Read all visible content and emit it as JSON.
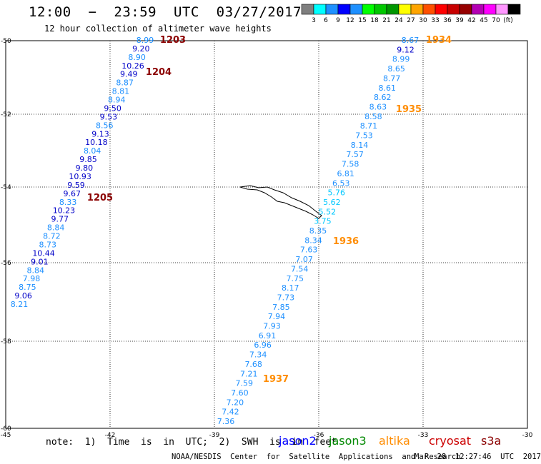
{
  "header": {
    "title": "12:00  −  23:59  UTC  03/27/2017",
    "subtitle": "12 hour collection of altimeter wave heights"
  },
  "colorbar": {
    "colors": [
      "#7f7f7f",
      "#00ffff",
      "#1e90ff",
      "#0000ff",
      "#1e90ff",
      "#00ff00",
      "#00c800",
      "#009600",
      "#ffff00",
      "#ffa500",
      "#ff5000",
      "#ff0000",
      "#c80000",
      "#960000",
      "#b400b4",
      "#ff00ff",
      "#ff96ff",
      "#000000"
    ],
    "labels": [
      "3",
      "6",
      "9",
      "12",
      "15",
      "18",
      "21",
      "24",
      "27",
      "30",
      "33",
      "36",
      "39",
      "42",
      "45",
      "70",
      "(ft)"
    ]
  },
  "axes": {
    "lat_labels": [
      "-50",
      "-52",
      "-54",
      "-56",
      "-58",
      "-60"
    ],
    "lon_labels": [
      "-45",
      "-42",
      "-39",
      "-36",
      "-33",
      "-30"
    ]
  },
  "tracks": {
    "left": [
      {
        "v": "8.99",
        "c": "#1e90ff"
      },
      {
        "v": "9.20",
        "c": "#0000c8"
      },
      {
        "v": "8.90",
        "c": "#1e90ff"
      },
      {
        "v": "10.26",
        "c": "#0000c8"
      },
      {
        "v": "9.49",
        "c": "#0000c8"
      },
      {
        "v": "8.87",
        "c": "#1e90ff"
      },
      {
        "v": "8.81",
        "c": "#1e90ff"
      },
      {
        "v": "8.94",
        "c": "#1e90ff"
      },
      {
        "v": "9.50",
        "c": "#0000c8"
      },
      {
        "v": "9.53",
        "c": "#0000c8"
      },
      {
        "v": "8.56",
        "c": "#1e90ff"
      },
      {
        "v": "9.13",
        "c": "#0000c8"
      },
      {
        "v": "10.18",
        "c": "#0000c8"
      },
      {
        "v": "8.04",
        "c": "#1e90ff"
      },
      {
        "v": "9.85",
        "c": "#0000c8"
      },
      {
        "v": "9.80",
        "c": "#0000c8"
      },
      {
        "v": "10.93",
        "c": "#0000c8"
      },
      {
        "v": "9.59",
        "c": "#0000c8"
      },
      {
        "v": "9.67",
        "c": "#0000c8"
      },
      {
        "v": "8.33",
        "c": "#1e90ff"
      },
      {
        "v": "10.23",
        "c": "#0000c8"
      },
      {
        "v": "9.77",
        "c": "#0000c8"
      },
      {
        "v": "8.84",
        "c": "#1e90ff"
      },
      {
        "v": "8.72",
        "c": "#1e90ff"
      },
      {
        "v": "8.73",
        "c": "#1e90ff"
      },
      {
        "v": "10.44",
        "c": "#0000c8"
      },
      {
        "v": "9.01",
        "c": "#0000c8"
      },
      {
        "v": "8.84",
        "c": "#1e90ff"
      },
      {
        "v": "7.98",
        "c": "#1e90ff"
      },
      {
        "v": "8.75",
        "c": "#1e90ff"
      },
      {
        "v": "9.06",
        "c": "#0000c8"
      },
      {
        "v": "8.21",
        "c": "#1e90ff"
      }
    ],
    "right": [
      {
        "v": "8.67",
        "c": "#1e90ff"
      },
      {
        "v": "9.12",
        "c": "#0000c8"
      },
      {
        "v": "8.99",
        "c": "#1e90ff"
      },
      {
        "v": "8.65",
        "c": "#1e90ff"
      },
      {
        "v": "8.77",
        "c": "#1e90ff"
      },
      {
        "v": "8.61",
        "c": "#1e90ff"
      },
      {
        "v": "8.62",
        "c": "#1e90ff"
      },
      {
        "v": "8.63",
        "c": "#1e90ff"
      },
      {
        "v": "8.58",
        "c": "#1e90ff"
      },
      {
        "v": "8.71",
        "c": "#1e90ff"
      },
      {
        "v": "7.53",
        "c": "#1e90ff"
      },
      {
        "v": "8.14",
        "c": "#1e90ff"
      },
      {
        "v": "7.57",
        "c": "#1e90ff"
      },
      {
        "v": "7.58",
        "c": "#1e90ff"
      },
      {
        "v": "6.81",
        "c": "#1e90ff"
      },
      {
        "v": "6.53",
        "c": "#1e90ff"
      },
      {
        "v": "5.76",
        "c": "#00c8ff"
      },
      {
        "v": "5.62",
        "c": "#00c8ff"
      },
      {
        "v": "5.52",
        "c": "#00c8ff"
      },
      {
        "v": "3.75",
        "c": "#00c8ff"
      },
      {
        "v": "8.35",
        "c": "#1e90ff"
      },
      {
        "v": "8.34",
        "c": "#1e90ff"
      },
      {
        "v": "7.63",
        "c": "#1e90ff"
      },
      {
        "v": "7.07",
        "c": "#1e90ff"
      },
      {
        "v": "7.54",
        "c": "#1e90ff"
      },
      {
        "v": "7.75",
        "c": "#1e90ff"
      },
      {
        "v": "8.17",
        "c": "#1e90ff"
      },
      {
        "v": "7.73",
        "c": "#1e90ff"
      },
      {
        "v": "7.85",
        "c": "#1e90ff"
      },
      {
        "v": "7.94",
        "c": "#1e90ff"
      },
      {
        "v": "7.93",
        "c": "#1e90ff"
      },
      {
        "v": "6.91",
        "c": "#1e90ff"
      },
      {
        "v": "6.96",
        "c": "#1e90ff"
      },
      {
        "v": "7.34",
        "c": "#1e90ff"
      },
      {
        "v": "7.68",
        "c": "#1e90ff"
      },
      {
        "v": "7.21",
        "c": "#1e90ff"
      },
      {
        "v": "7.59",
        "c": "#1e90ff"
      },
      {
        "v": "7.60",
        "c": "#1e90ff"
      },
      {
        "v": "7.20",
        "c": "#1e90ff"
      },
      {
        "v": "7.42",
        "c": "#1e90ff"
      },
      {
        "v": "7.36",
        "c": "#1e90ff"
      }
    ],
    "left_times": [
      "1203",
      "1204",
      "1205"
    ],
    "right_times": [
      "1934",
      "1935",
      "1936",
      "1937"
    ],
    "left_time_color": "#8b0000",
    "right_time_color": "#ff8c00"
  },
  "footer": {
    "note": "note:  1)  Time  is  in  UTC;  2)  SWH  is  in  feet",
    "legend": [
      {
        "label": "jason2",
        "color": "#0000ff"
      },
      {
        "label": "jason3",
        "color": "#008800"
      },
      {
        "label": "altika",
        "color": "#ff8c00"
      },
      {
        "label": "cryosat",
        "color": "#cc0000"
      },
      {
        "label": "s3a",
        "color": "#8b0000"
      }
    ],
    "credit": "NOAA/NESDIS  Center  for  Satellite  Applications  and  Research",
    "timestamp": "Mar  28  12:27:46  UTC  2017"
  }
}
